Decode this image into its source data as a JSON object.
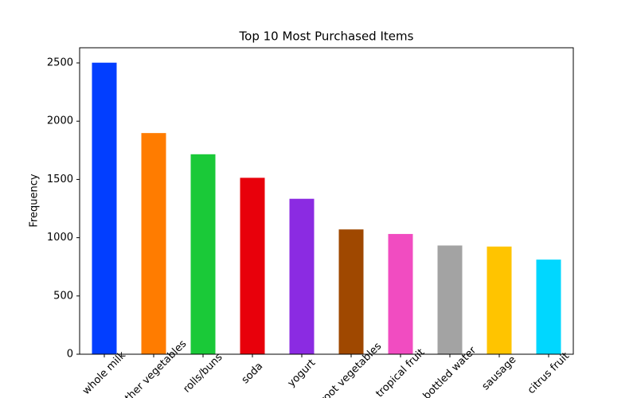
{
  "chart_data": {
    "type": "bar",
    "title": "Top 10 Most Purchased Items",
    "y_label": "Frequency",
    "categories": [
      "whole milk",
      "other vegetables",
      "rolls/buns",
      "soda",
      "yogurt",
      "root vegetables",
      "tropical fruit",
      "bottled water",
      "sausage",
      "citrus fruit"
    ],
    "values": [
      2502,
      1898,
      1716,
      1514,
      1334,
      1071,
      1032,
      933,
      924,
      812
    ],
    "colors": [
      "#023eff",
      "#ff7c00",
      "#1ac938",
      "#e8000b",
      "#8b2be2",
      "#9f4800",
      "#f14cc1",
      "#a3a3a3",
      "#ffc400",
      "#00d7ff"
    ],
    "ylim": [
      0,
      2630
    ],
    "yticks": [
      0,
      500,
      1000,
      1500,
      2000,
      2500
    ],
    "grid": false
  }
}
